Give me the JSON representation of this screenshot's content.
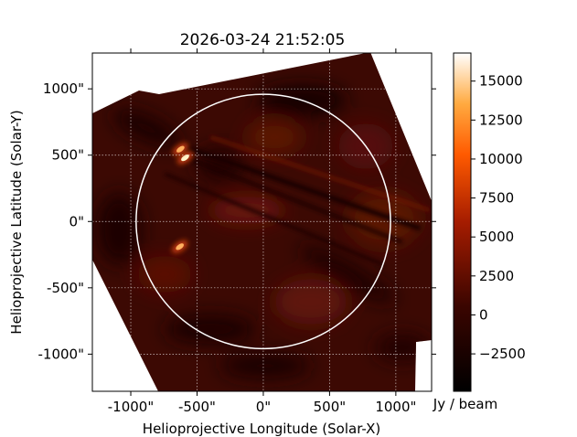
{
  "chart_data": {
    "type": "heatmap",
    "title": "2026-03-24 21:52:05",
    "xlabel": "Helioprojective Longitude (Solar-X)",
    "ylabel": "Helioprojective Latitude (Solar-Y)",
    "xlim": [
      -1290,
      1270
    ],
    "ylim": [
      -1280,
      1270
    ],
    "x_ticks": [
      {
        "value": -1000,
        "label": "-1000\""
      },
      {
        "value": -500,
        "label": "-500\""
      },
      {
        "value": 0,
        "label": "0\""
      },
      {
        "value": 500,
        "label": "500\""
      },
      {
        "value": 1000,
        "label": "1000\""
      }
    ],
    "y_ticks": [
      {
        "value": 1000,
        "label": "1000\""
      },
      {
        "value": 500,
        "label": "500\""
      },
      {
        "value": 0,
        "label": "0\""
      },
      {
        "value": -500,
        "label": "-500\""
      },
      {
        "value": -1000,
        "label": "-1000\""
      }
    ],
    "grid": "dotted",
    "solar_limb_radius_arcsec": 960,
    "bright_sources": [
      {
        "x": -590,
        "y": 480,
        "peak": 16500
      },
      {
        "x": -625,
        "y": 545,
        "peak": 12000
      },
      {
        "x": -630,
        "y": -190,
        "peak": 9000
      }
    ],
    "colorbar": {
      "label": "Jy / beam",
      "min": -4900,
      "max": 16800,
      "colormap": "afmhot",
      "ticks": [
        {
          "value": 15000,
          "label": "15000"
        },
        {
          "value": 12500,
          "label": "12500"
        },
        {
          "value": 10000,
          "label": "10000"
        },
        {
          "value": 7500,
          "label": "7500"
        },
        {
          "value": 5000,
          "label": "5000"
        },
        {
          "value": 2500,
          "label": "2500"
        },
        {
          "value": 0,
          "label": "0"
        },
        {
          "value": -2500,
          "label": "−2500"
        }
      ]
    }
  }
}
